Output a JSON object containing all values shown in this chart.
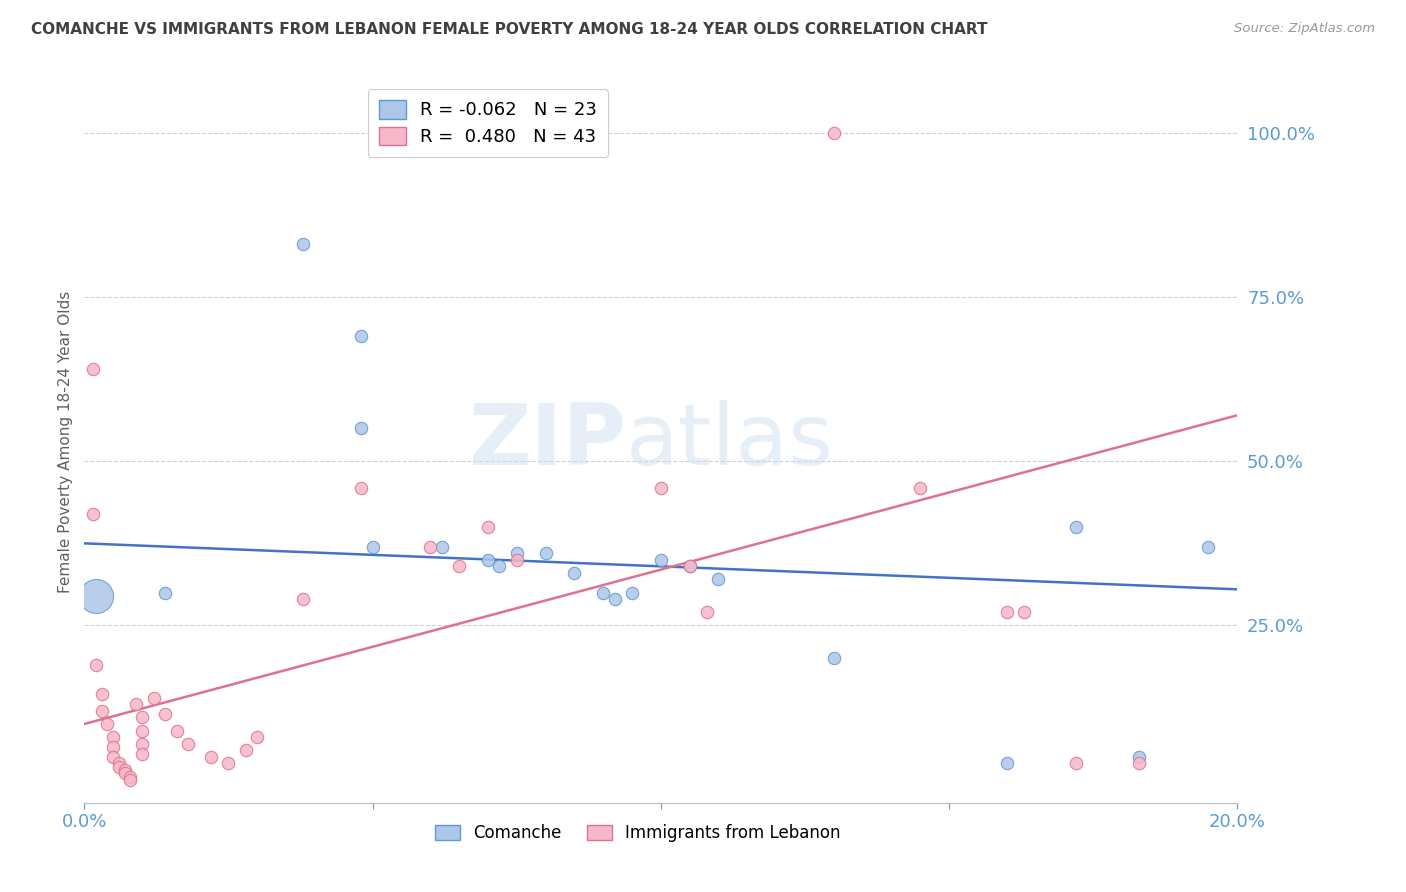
{
  "title": "COMANCHE VS IMMIGRANTS FROM LEBANON FEMALE POVERTY AMONG 18-24 YEAR OLDS CORRELATION CHART",
  "source": "Source: ZipAtlas.com",
  "ylabel": "Female Poverty Among 18-24 Year Olds",
  "ytick_labels": [
    "100.0%",
    "75.0%",
    "50.0%",
    "25.0%"
  ],
  "ytick_values": [
    1.0,
    0.75,
    0.5,
    0.25
  ],
  "xlim": [
    0.0,
    0.2
  ],
  "ylim": [
    -0.02,
    1.08
  ],
  "watermark_text": "ZIPatlas",
  "comanche_scatter": [
    [
      0.002,
      0.295
    ],
    [
      0.014,
      0.3
    ],
    [
      0.038,
      0.83
    ],
    [
      0.048,
      0.69
    ],
    [
      0.048,
      0.55
    ],
    [
      0.05,
      0.37
    ],
    [
      0.062,
      0.37
    ],
    [
      0.07,
      0.35
    ],
    [
      0.072,
      0.34
    ],
    [
      0.075,
      0.36
    ],
    [
      0.08,
      0.36
    ],
    [
      0.085,
      0.33
    ],
    [
      0.09,
      0.3
    ],
    [
      0.092,
      0.29
    ],
    [
      0.095,
      0.3
    ],
    [
      0.1,
      0.35
    ],
    [
      0.105,
      0.34
    ],
    [
      0.11,
      0.32
    ],
    [
      0.13,
      0.2
    ],
    [
      0.16,
      0.04
    ],
    [
      0.172,
      0.4
    ],
    [
      0.183,
      0.05
    ],
    [
      0.195,
      0.37
    ]
  ],
  "lebanon_scatter": [
    [
      0.0015,
      0.64
    ],
    [
      0.0015,
      0.42
    ],
    [
      0.002,
      0.19
    ],
    [
      0.003,
      0.145
    ],
    [
      0.003,
      0.12
    ],
    [
      0.004,
      0.1
    ],
    [
      0.005,
      0.08
    ],
    [
      0.005,
      0.065
    ],
    [
      0.005,
      0.05
    ],
    [
      0.006,
      0.04
    ],
    [
      0.006,
      0.035
    ],
    [
      0.007,
      0.03
    ],
    [
      0.007,
      0.025
    ],
    [
      0.008,
      0.02
    ],
    [
      0.008,
      0.015
    ],
    [
      0.009,
      0.13
    ],
    [
      0.01,
      0.11
    ],
    [
      0.01,
      0.09
    ],
    [
      0.01,
      0.07
    ],
    [
      0.01,
      0.055
    ],
    [
      0.012,
      0.14
    ],
    [
      0.014,
      0.115
    ],
    [
      0.016,
      0.09
    ],
    [
      0.018,
      0.07
    ],
    [
      0.022,
      0.05
    ],
    [
      0.025,
      0.04
    ],
    [
      0.028,
      0.06
    ],
    [
      0.03,
      0.08
    ],
    [
      0.038,
      0.29
    ],
    [
      0.048,
      0.46
    ],
    [
      0.06,
      0.37
    ],
    [
      0.065,
      0.34
    ],
    [
      0.07,
      0.4
    ],
    [
      0.075,
      0.35
    ],
    [
      0.1,
      0.46
    ],
    [
      0.105,
      0.34
    ],
    [
      0.108,
      0.27
    ],
    [
      0.13,
      1.0
    ],
    [
      0.145,
      0.46
    ],
    [
      0.16,
      0.27
    ],
    [
      0.163,
      0.27
    ],
    [
      0.172,
      0.04
    ],
    [
      0.183,
      0.04
    ]
  ],
  "comanche_line": {
    "x0": 0.0,
    "y0": 0.375,
    "x1": 0.2,
    "y1": 0.305
  },
  "lebanon_line": {
    "x0": 0.0,
    "y0": 0.1,
    "x1": 0.2,
    "y1": 0.57
  },
  "title_color": "#404040",
  "source_color": "#999999",
  "axis_tick_color": "#5b9bd5",
  "ylabel_color": "#606060",
  "comanche_color": "#aec6e8",
  "lebanon_color": "#f5b8c8",
  "comanche_edge_color": "#5b9bd5",
  "lebanon_edge_color": "#e07090",
  "comanche_line_color": "#4472c4",
  "lebanon_line_color": "#e07090",
  "grid_color": "#d0d0d0",
  "background_color": "#ffffff",
  "marker_size": 80,
  "big_marker_size": 600
}
